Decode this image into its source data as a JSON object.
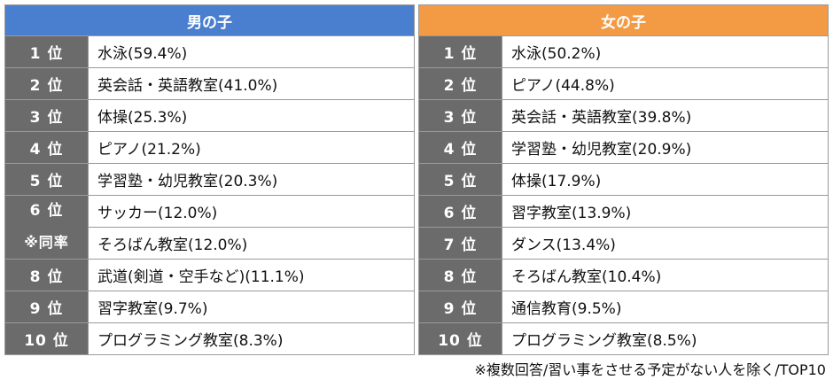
{
  "boys": {
    "header": "男の子",
    "rows": [
      {
        "rank": "1 位",
        "item": "水泳(59.4%)"
      },
      {
        "rank": "2 位",
        "item": "英会話・英語教室(41.0%)"
      },
      {
        "rank": "3 位",
        "item": "体操(25.3%)"
      },
      {
        "rank": "4 位",
        "item": "ピアノ(21.2%)"
      },
      {
        "rank": "5 位",
        "item": "学習塾・幼児教室(20.3%)"
      },
      {
        "rank": "6 位",
        "item": "サッカー(12.0%)"
      },
      {
        "rank": "※同率",
        "item": "そろばん教室(12.0%)"
      },
      {
        "rank": "8 位",
        "item": "武道(剣道・空手など)(11.1%)"
      },
      {
        "rank": "9 位",
        "item": "習字教室(9.7%)"
      },
      {
        "rank": "10 位",
        "item": "プログラミング教室(8.3%)"
      }
    ]
  },
  "girls": {
    "header": "女の子",
    "rows": [
      {
        "rank": "1 位",
        "item": "水泳(50.2%)"
      },
      {
        "rank": "2 位",
        "item": "ピアノ(44.8%)"
      },
      {
        "rank": "3 位",
        "item": "英会話・英語教室(39.8%)"
      },
      {
        "rank": "4 位",
        "item": "学習塾・幼児教室(20.9%)"
      },
      {
        "rank": "5 位",
        "item": "体操(17.9%)"
      },
      {
        "rank": "6 位",
        "item": "習字教室(13.9%)"
      },
      {
        "rank": "7 位",
        "item": "ダンス(13.4%)"
      },
      {
        "rank": "8 位",
        "item": "そろばん教室(10.4%)"
      },
      {
        "rank": "9 位",
        "item": "通信教育(9.5%)"
      },
      {
        "rank": "10 位",
        "item": "プログラミング教室(8.5%)"
      }
    ]
  },
  "footnote": "※複数回答/習い事をさせる予定がない人を除く/TOP10"
}
